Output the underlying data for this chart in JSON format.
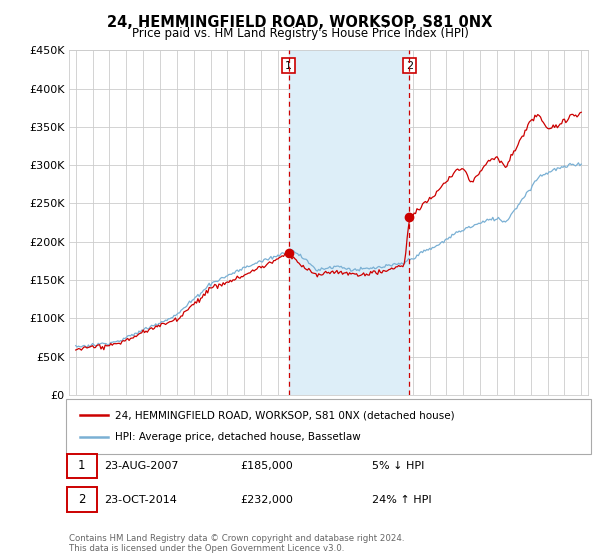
{
  "title": "24, HEMMINGFIELD ROAD, WORKSOP, S81 0NX",
  "subtitle": "Price paid vs. HM Land Registry's House Price Index (HPI)",
  "ylabel_ticks": [
    "£0",
    "£50K",
    "£100K",
    "£150K",
    "£200K",
    "£250K",
    "£300K",
    "£350K",
    "£400K",
    "£450K"
  ],
  "ytick_values": [
    0,
    50000,
    100000,
    150000,
    200000,
    250000,
    300000,
    350000,
    400000,
    450000
  ],
  "ylim": [
    0,
    450000
  ],
  "xlim_start": 1994.6,
  "xlim_end": 2025.4,
  "shade_x1": 2007.63,
  "shade_x2": 2014.8,
  "sale1_x": 2007.63,
  "sale1_y": 185000,
  "sale1_label": "1",
  "sale2_x": 2014.8,
  "sale2_y": 232000,
  "sale2_label": "2",
  "line_color_property": "#cc0000",
  "line_color_hpi": "#7ab0d4",
  "shade_color": "#ddeef8",
  "dashed_color": "#cc0000",
  "grid_color": "#cccccc",
  "background_color": "#ffffff",
  "legend_line1": "24, HEMMINGFIELD ROAD, WORKSOP, S81 0NX (detached house)",
  "legend_line2": "HPI: Average price, detached house, Bassetlaw",
  "table_row1_num": "1",
  "table_row1_date": "23-AUG-2007",
  "table_row1_price": "£185,000",
  "table_row1_hpi": "5% ↓ HPI",
  "table_row2_num": "2",
  "table_row2_date": "23-OCT-2014",
  "table_row2_price": "£232,000",
  "table_row2_hpi": "24% ↑ HPI",
  "footnote": "Contains HM Land Registry data © Crown copyright and database right 2024.\nThis data is licensed under the Open Government Licence v3.0."
}
